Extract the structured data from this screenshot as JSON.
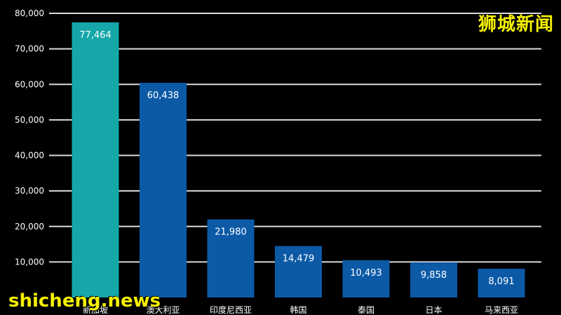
{
  "chart_data": {
    "type": "bar",
    "categories": [
      "新加坡",
      "澳大利亚",
      "印度尼西亚",
      "韩国",
      "泰国",
      "日本",
      "马来西亚"
    ],
    "values": [
      77464,
      60438,
      21980,
      14479,
      10493,
      9858,
      8091
    ],
    "value_labels": [
      "77,464",
      "60,438",
      "21,980",
      "14,479",
      "10,493",
      "9,858",
      "8,091"
    ],
    "bar_colors": [
      "#15a7a9",
      "#0c5aa6",
      "#0c5aa6",
      "#0c5aa6",
      "#0c5aa6",
      "#0c5aa6",
      "#0c5aa6"
    ],
    "yticks": [
      10000,
      20000,
      30000,
      40000,
      50000,
      60000,
      70000,
      80000
    ],
    "ytick_labels": [
      "10,000",
      "20,000",
      "30,000",
      "40,000",
      "50,000",
      "60,000",
      "70,000",
      "80,000"
    ],
    "ylim": [
      0,
      80000
    ],
    "grid": true,
    "title": "",
    "xlabel": "",
    "ylabel": ""
  },
  "watermarks": {
    "top_right": "狮城新闻",
    "bottom_left": "shicheng.news"
  }
}
